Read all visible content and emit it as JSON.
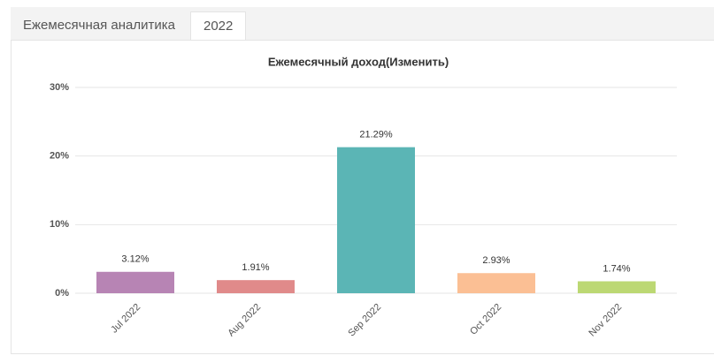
{
  "tabs": [
    "Ежемесячная аналитика",
    "2022"
  ],
  "chart_data": {
    "type": "bar",
    "title": "Ежемесячный доход(Изменить)",
    "categories": [
      "Jul 2022",
      "Aug 2022",
      "Sep 2022",
      "Oct 2022",
      "Nov 2022"
    ],
    "values": [
      3.12,
      1.91,
      21.29,
      2.93,
      1.74
    ],
    "value_labels": [
      "3.12%",
      "1.91%",
      "21.29%",
      "2.93%",
      "1.74%"
    ],
    "colors": [
      "#b784b4",
      "#e08a8a",
      "#5bb5b5",
      "#fbbf94",
      "#bcd873"
    ],
    "ylim": [
      0,
      30
    ],
    "yticks": [
      {
        "value": 0,
        "label": "0%"
      },
      {
        "value": 10,
        "label": "10%"
      },
      {
        "value": 20,
        "label": "20%"
      },
      {
        "value": 30,
        "label": "30%"
      }
    ],
    "grid": true
  }
}
